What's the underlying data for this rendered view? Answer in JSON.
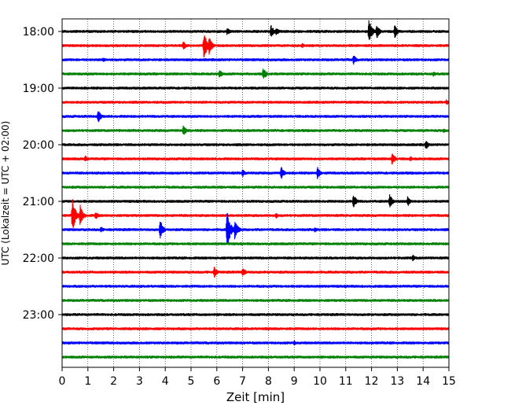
{
  "chart_data": {
    "type": "line",
    "xlabel": "Zeit  [min]",
    "ylabel": "UTC (Lokalzeit = UTC + 02:00)",
    "xlim": [
      0,
      15
    ],
    "x_ticks": [
      0,
      1,
      2,
      3,
      4,
      5,
      6,
      7,
      8,
      9,
      10,
      11,
      12,
      13,
      14,
      15
    ],
    "y_ticks": [
      "18:00",
      "19:00",
      "20:00",
      "21:00",
      "22:00",
      "23:00"
    ],
    "grid_x": true,
    "trace_interval_min": 15,
    "trace_colors": [
      "#000000",
      "#ff0000",
      "#0000ff",
      "#008000"
    ],
    "traces": [
      {
        "start": "18:00",
        "color": "#000000",
        "events": [
          {
            "t": 6.4,
            "amp": 6
          },
          {
            "t": 8.1,
            "amp": 9
          },
          {
            "t": 8.3,
            "amp": 6
          },
          {
            "t": 11.9,
            "amp": 16
          },
          {
            "t": 12.2,
            "amp": 10
          },
          {
            "t": 12.9,
            "amp": 9
          }
        ]
      },
      {
        "start": "18:15",
        "color": "#ff0000",
        "events": [
          {
            "t": 4.7,
            "amp": 7
          },
          {
            "t": 5.5,
            "amp": 20
          },
          {
            "t": 5.7,
            "amp": 12
          },
          {
            "t": 9.3,
            "amp": 4
          }
        ]
      },
      {
        "start": "18:30",
        "color": "#0000ff",
        "events": [
          {
            "t": 1.6,
            "amp": 4
          },
          {
            "t": 11.3,
            "amp": 7
          }
        ]
      },
      {
        "start": "18:45",
        "color": "#008000",
        "events": [
          {
            "t": 6.1,
            "amp": 6
          },
          {
            "t": 7.8,
            "amp": 9
          },
          {
            "t": 14.4,
            "amp": 4
          }
        ]
      },
      {
        "start": "19:00",
        "color": "#000000",
        "events": []
      },
      {
        "start": "19:15",
        "color": "#ff0000",
        "events": [
          {
            "t": 14.9,
            "amp": 4
          }
        ]
      },
      {
        "start": "19:30",
        "color": "#0000ff",
        "events": [
          {
            "t": 1.4,
            "amp": 9
          }
        ]
      },
      {
        "start": "19:45",
        "color": "#008000",
        "events": [
          {
            "t": 4.7,
            "amp": 8
          },
          {
            "t": 14.8,
            "amp": 4
          }
        ]
      },
      {
        "start": "20:00",
        "color": "#000000",
        "events": [
          {
            "t": 14.1,
            "amp": 7
          }
        ]
      },
      {
        "start": "20:15",
        "color": "#ff0000",
        "events": [
          {
            "t": 0.9,
            "amp": 5
          },
          {
            "t": 12.8,
            "amp": 9
          },
          {
            "t": 13.5,
            "amp": 4
          }
        ]
      },
      {
        "start": "20:30",
        "color": "#0000ff",
        "events": [
          {
            "t": 7.0,
            "amp": 6
          },
          {
            "t": 8.5,
            "amp": 9
          },
          {
            "t": 9.9,
            "amp": 9
          }
        ]
      },
      {
        "start": "20:45",
        "color": "#008000",
        "events": []
      },
      {
        "start": "21:00",
        "color": "#000000",
        "events": [
          {
            "t": 11.3,
            "amp": 10
          },
          {
            "t": 12.7,
            "amp": 10
          },
          {
            "t": 13.4,
            "amp": 7
          }
        ]
      },
      {
        "start": "21:15",
        "color": "#ff0000",
        "events": [
          {
            "t": 0.4,
            "amp": 22
          },
          {
            "t": 0.7,
            "amp": 14
          },
          {
            "t": 1.3,
            "amp": 6
          },
          {
            "t": 8.3,
            "amp": 4
          }
        ]
      },
      {
        "start": "21:30",
        "color": "#0000ff",
        "events": [
          {
            "t": 1.5,
            "amp": 5
          },
          {
            "t": 3.8,
            "amp": 13
          },
          {
            "t": 6.4,
            "amp": 26
          },
          {
            "t": 6.7,
            "amp": 14
          },
          {
            "t": 9.8,
            "amp": 4
          }
        ]
      },
      {
        "start": "21:45",
        "color": "#008000",
        "events": []
      },
      {
        "start": "22:00",
        "color": "#000000",
        "events": [
          {
            "t": 13.6,
            "amp": 5
          }
        ]
      },
      {
        "start": "22:15",
        "color": "#ff0000",
        "events": [
          {
            "t": 5.9,
            "amp": 8
          },
          {
            "t": 7.0,
            "amp": 7
          }
        ]
      },
      {
        "start": "22:30",
        "color": "#0000ff",
        "events": []
      },
      {
        "start": "22:45",
        "color": "#008000",
        "events": []
      },
      {
        "start": "23:00",
        "color": "#000000",
        "events": []
      },
      {
        "start": "23:15",
        "color": "#ff0000",
        "events": []
      },
      {
        "start": "23:30",
        "color": "#0000ff",
        "events": [
          {
            "t": 9.0,
            "amp": 4
          }
        ]
      },
      {
        "start": "23:45",
        "color": "#008000",
        "events": []
      }
    ]
  }
}
